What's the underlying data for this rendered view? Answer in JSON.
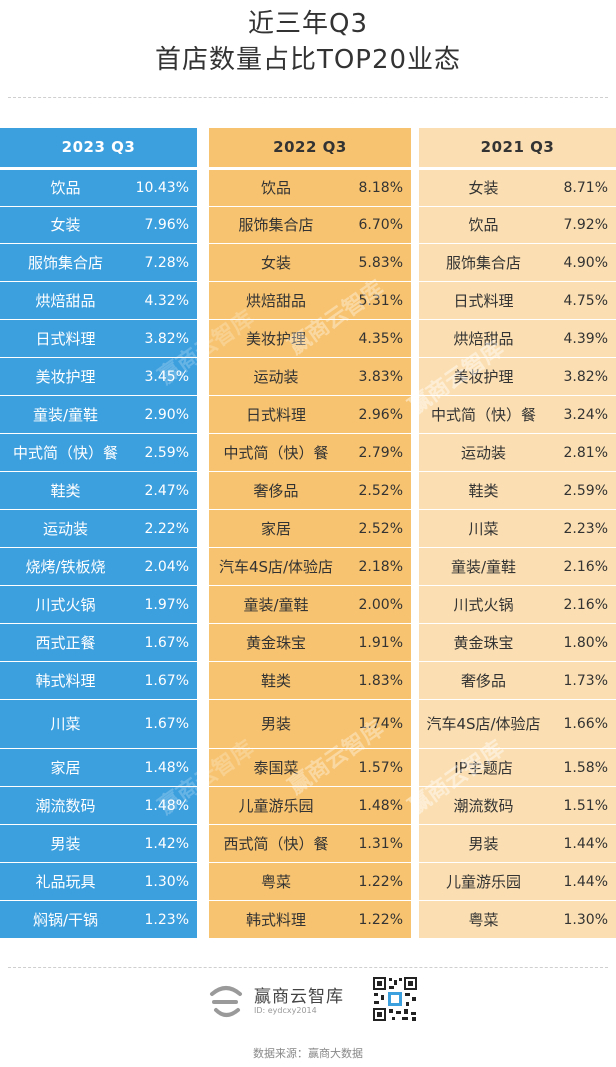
{
  "title": {
    "line1": "近三年Q3",
    "line2": "首店数量占比TOP20业态"
  },
  "watermark": "赢商云智库",
  "colors": {
    "col_2023": "#3c9fde",
    "col_2022": "#f7c370",
    "col_2021": "#fbdfb2"
  },
  "chart_data": {
    "type": "table",
    "columns": [
      {
        "header": "2023 Q3",
        "rows": [
          {
            "name": "饮品",
            "pct": "10.43%"
          },
          {
            "name": "女装",
            "pct": "7.96%"
          },
          {
            "name": "服饰集合店",
            "pct": "7.28%"
          },
          {
            "name": "烘焙甜品",
            "pct": "4.32%"
          },
          {
            "name": "日式料理",
            "pct": "3.82%"
          },
          {
            "name": "美妆护理",
            "pct": "3.45%"
          },
          {
            "name": "童装/童鞋",
            "pct": "2.90%"
          },
          {
            "name": "中式简（快）餐",
            "pct": "2.59%"
          },
          {
            "name": "鞋类",
            "pct": "2.47%"
          },
          {
            "name": "运动装",
            "pct": "2.22%"
          },
          {
            "name": "烧烤/铁板烧",
            "pct": "2.04%"
          },
          {
            "name": "川式火锅",
            "pct": "1.97%"
          },
          {
            "name": "西式正餐",
            "pct": "1.67%"
          },
          {
            "name": "韩式料理",
            "pct": "1.67%"
          },
          {
            "name": "川菜",
            "pct": "1.67%"
          },
          {
            "name": "家居",
            "pct": "1.48%"
          },
          {
            "name": "潮流数码",
            "pct": "1.48%"
          },
          {
            "name": "男装",
            "pct": "1.42%"
          },
          {
            "name": "礼品玩具",
            "pct": "1.30%"
          },
          {
            "name": "焖锅/干锅",
            "pct": "1.23%"
          }
        ]
      },
      {
        "header": "2022 Q3",
        "rows": [
          {
            "name": "饮品",
            "pct": "8.18%"
          },
          {
            "name": "服饰集合店",
            "pct": "6.70%"
          },
          {
            "name": "女装",
            "pct": "5.83%"
          },
          {
            "name": "烘焙甜品",
            "pct": "5.31%"
          },
          {
            "name": "美妆护理",
            "pct": "4.35%"
          },
          {
            "name": "运动装",
            "pct": "3.83%"
          },
          {
            "name": "日式料理",
            "pct": "2.96%"
          },
          {
            "name": "中式简（快）餐",
            "pct": "2.79%"
          },
          {
            "name": "奢侈品",
            "pct": "2.52%"
          },
          {
            "name": "家居",
            "pct": "2.52%"
          },
          {
            "name": "汽车4S店/体验店",
            "pct": "2.18%"
          },
          {
            "name": "童装/童鞋",
            "pct": "2.00%"
          },
          {
            "name": "黄金珠宝",
            "pct": "1.91%"
          },
          {
            "name": "鞋类",
            "pct": "1.83%"
          },
          {
            "name": "男装",
            "pct": "1.74%"
          },
          {
            "name": "泰国菜",
            "pct": "1.57%"
          },
          {
            "name": "儿童游乐园",
            "pct": "1.48%"
          },
          {
            "name": "西式简（快）餐",
            "pct": "1.31%"
          },
          {
            "name": "粤菜",
            "pct": "1.22%"
          },
          {
            "name": "韩式料理",
            "pct": "1.22%"
          }
        ]
      },
      {
        "header": "2021 Q3",
        "rows": [
          {
            "name": "女装",
            "pct": "8.71%"
          },
          {
            "name": "饮品",
            "pct": "7.92%"
          },
          {
            "name": "服饰集合店",
            "pct": "4.90%"
          },
          {
            "name": "日式料理",
            "pct": "4.75%"
          },
          {
            "name": "烘焙甜品",
            "pct": "4.39%"
          },
          {
            "name": "美妆护理",
            "pct": "3.82%"
          },
          {
            "name": "中式简（快）餐",
            "pct": "3.24%"
          },
          {
            "name": "运动装",
            "pct": "2.81%"
          },
          {
            "name": "鞋类",
            "pct": "2.59%"
          },
          {
            "name": "川菜",
            "pct": "2.23%"
          },
          {
            "name": "童装/童鞋",
            "pct": "2.16%"
          },
          {
            "name": "川式火锅",
            "pct": "2.16%"
          },
          {
            "name": "黄金珠宝",
            "pct": "1.80%"
          },
          {
            "name": "奢侈品",
            "pct": "1.73%"
          },
          {
            "name": "汽车4S店/体验店",
            "pct": "1.66%"
          },
          {
            "name": "IP主题店",
            "pct": "1.58%"
          },
          {
            "name": "潮流数码",
            "pct": "1.51%"
          },
          {
            "name": "男装",
            "pct": "1.44%"
          },
          {
            "name": "儿童游乐园",
            "pct": "1.44%"
          },
          {
            "name": "粤菜",
            "pct": "1.30%"
          }
        ]
      }
    ]
  },
  "footer": {
    "brand_name": "赢商云智库",
    "brand_sub": "ID: eydcxy2014",
    "source": "数据来源：赢商大数据"
  }
}
